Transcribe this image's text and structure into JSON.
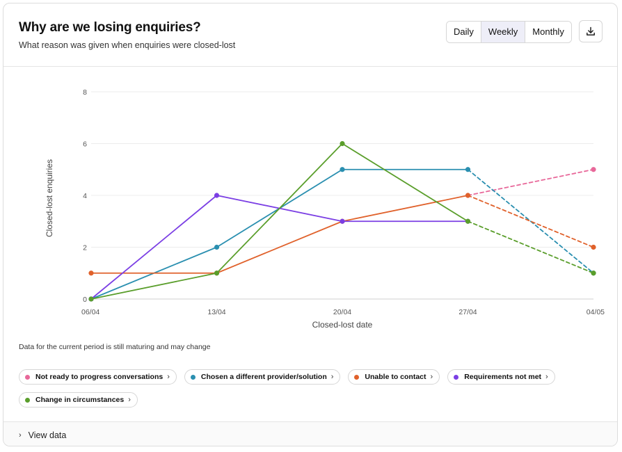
{
  "header": {
    "title": "Why are we losing enquiries?",
    "subtitle": "What reason was given when enquiries were closed-lost"
  },
  "toolbar": {
    "periods": [
      "Daily",
      "Weekly",
      "Monthly"
    ],
    "active_period": "Weekly",
    "download_icon": "download-icon"
  },
  "note": "Data for the current period is still maturing and may change",
  "footer": {
    "view_data_label": "View data"
  },
  "chart_data": {
    "type": "line",
    "xlabel": "Closed-lost date",
    "ylabel": "Closed-lost enquiries",
    "categories": [
      "06/04",
      "13/04",
      "20/04",
      "27/04",
      "04/05"
    ],
    "ylim": [
      0,
      8
    ],
    "yticks": [
      0,
      2,
      4,
      6,
      8
    ],
    "grid": true,
    "maturing_from_index": 3,
    "series": [
      {
        "name": "Not ready to progress conversations",
        "color": "#e8689a",
        "values": [
          null,
          null,
          null,
          4,
          5
        ]
      },
      {
        "name": "Chosen a different provider/solution",
        "color": "#2a8fb0",
        "values": [
          0,
          2,
          5,
          5,
          1
        ]
      },
      {
        "name": "Unable to contact",
        "color": "#e0612b",
        "values": [
          1,
          1,
          3,
          4,
          2
        ]
      },
      {
        "name": "Requirements not met",
        "color": "#7b3fe4",
        "values": [
          0,
          4,
          3,
          3,
          null
        ]
      },
      {
        "name": "Change in circumstances",
        "color": "#5a9e2b",
        "values": [
          0,
          1,
          6,
          3,
          1
        ]
      }
    ]
  }
}
